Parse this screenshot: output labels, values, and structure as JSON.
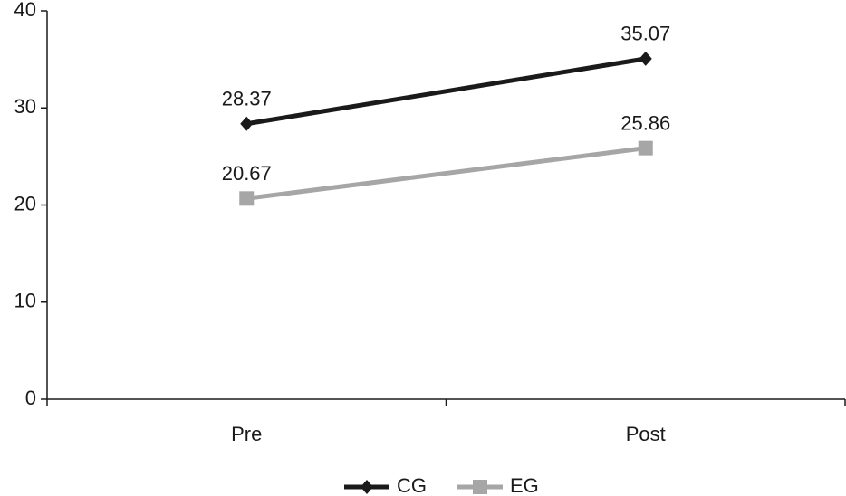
{
  "chart_data": {
    "type": "line",
    "categories": [
      "Pre",
      "Post"
    ],
    "series": [
      {
        "name": "CG",
        "color": "#1a1a1a",
        "marker": "diamond",
        "values": [
          28.37,
          35.07
        ]
      },
      {
        "name": "EG",
        "color": "#a6a6a6",
        "marker": "square",
        "values": [
          20.67,
          25.86
        ]
      }
    ],
    "ylim": [
      0,
      40
    ],
    "yticks": [
      0,
      10,
      20,
      30,
      40
    ],
    "grid": false,
    "legend": "bottom"
  }
}
